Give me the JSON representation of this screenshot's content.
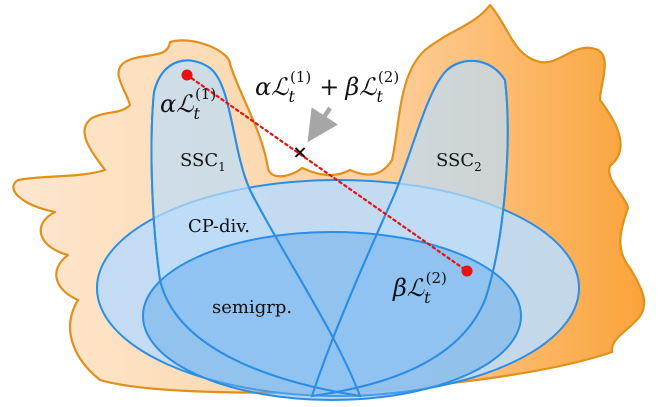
{
  "colors": {
    "outer_fill_left": "#fde7cf",
    "outer_fill_right": "#fba33a",
    "outer_stroke": "#e2901c",
    "set_fill": "#bcdcf8",
    "set_stroke": "#2b8ee6",
    "semigroup_fill": "#62a9ec",
    "point_color": "#e81010",
    "arrow_color": "#a6a6a6"
  },
  "labels": {
    "ssc1": {
      "base": "SSC",
      "sub": "1"
    },
    "ssc2": {
      "base": "SSC",
      "sub": "2"
    },
    "cpdiv": "CP-div.",
    "semigroup": "semigrp."
  },
  "math": {
    "alpha": "α",
    "beta": "β",
    "L": "ℒ",
    "t": "t",
    "plus": "+",
    "sup1": "(1)",
    "sup2": "(2)"
  },
  "markers": {
    "cross": "×"
  }
}
